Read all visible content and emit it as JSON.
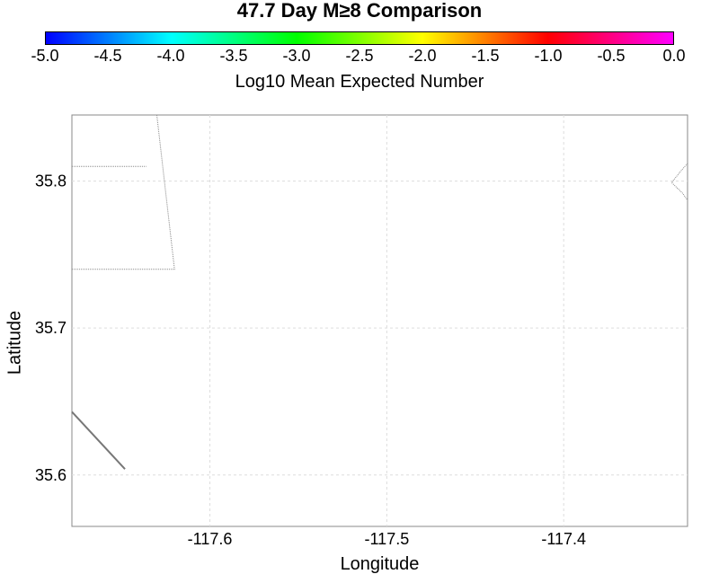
{
  "title": "47.7 Day M≥8 Comparison",
  "colorbar": {
    "label": "Log10 Mean Expected Number",
    "ticks": [
      "-5.0",
      "-4.5",
      "-4.0",
      "-3.5",
      "-3.0",
      "-2.5",
      "-2.0",
      "-1.5",
      "-1.0",
      "-0.5",
      "0.0"
    ],
    "min": -5.0,
    "max": 0.0,
    "colors": [
      "#0000ff",
      "#00ffff",
      "#00ff00",
      "#ffff00",
      "#ff0000",
      "#ff00ff"
    ]
  },
  "map": {
    "xlabel": "Longitude",
    "ylabel": "Latitude",
    "xlim": [
      -117.678,
      -117.33
    ],
    "ylim": [
      35.565,
      35.845
    ],
    "xticks": [
      {
        "value": -117.6,
        "label": "-117.6"
      },
      {
        "value": -117.5,
        "label": "-117.5"
      },
      {
        "value": -117.4,
        "label": "-117.4"
      }
    ],
    "yticks": [
      {
        "value": 35.8,
        "label": "35.8"
      },
      {
        "value": 35.7,
        "label": "35.7"
      },
      {
        "value": 35.6,
        "label": "35.6"
      }
    ],
    "grid": true,
    "boundaries": [
      {
        "style": "thin",
        "coords": [
          [
            -117.63,
            35.845
          ],
          [
            -117.62,
            35.74
          ],
          [
            -117.678,
            35.74
          ]
        ]
      },
      {
        "style": "thin",
        "coords": [
          [
            -117.678,
            35.81
          ],
          [
            -117.636,
            35.81
          ]
        ]
      },
      {
        "style": "thin",
        "coords": [
          [
            -117.33,
            35.812
          ],
          [
            -117.333,
            35.808
          ],
          [
            -117.339,
            35.799
          ],
          [
            -117.333,
            35.792
          ],
          [
            -117.33,
            35.787
          ]
        ]
      },
      {
        "style": "thick",
        "coords": [
          [
            -117.678,
            35.643
          ],
          [
            -117.648,
            35.604
          ]
        ]
      }
    ]
  }
}
